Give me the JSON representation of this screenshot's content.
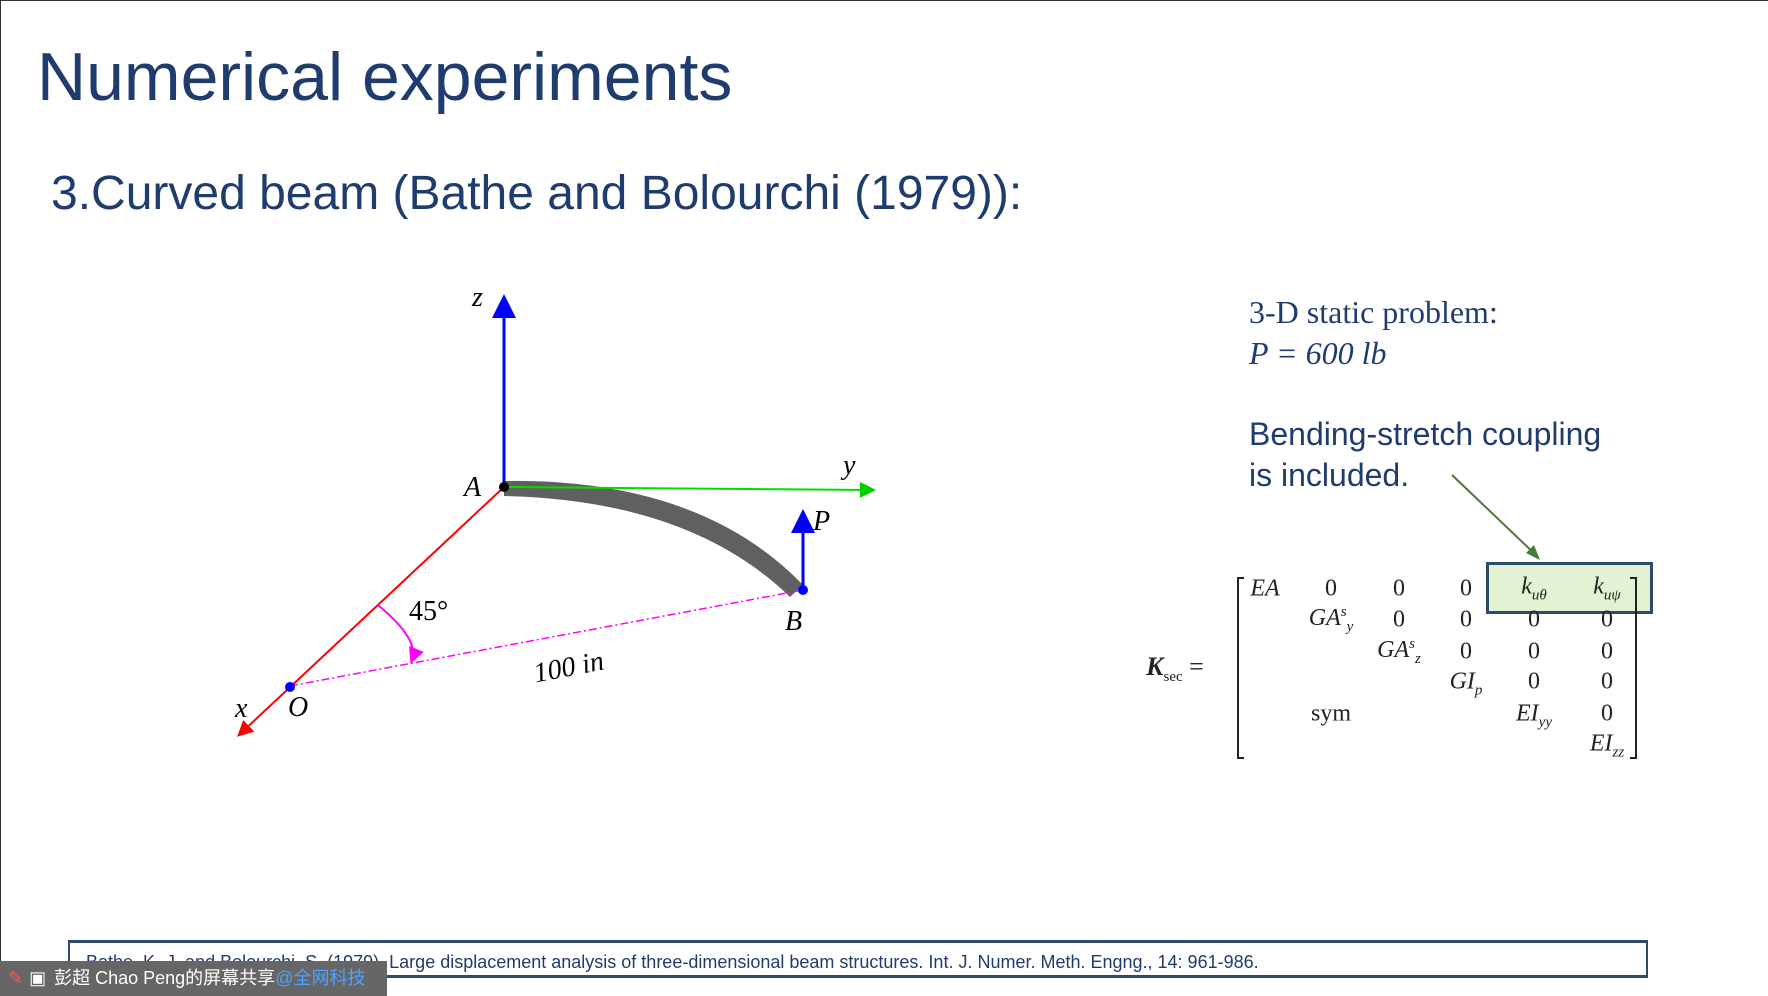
{
  "slide": {
    "title": "Numerical experiments",
    "subtitle": "3.Curved beam (Bathe and Bolourchi (1979)):",
    "diagram": {
      "labels": {
        "z": "z",
        "y": "y",
        "x": "x",
        "A": "A",
        "B": "B",
        "O": "O",
        "P": "P",
        "angle": "45°",
        "length": "100 in"
      },
      "colors": {
        "z_axis": "#0000ff",
        "y_axis": "#00dd00",
        "x_axis": "#ff0000",
        "beam": "#606060",
        "dashed": "#ff00ff"
      }
    },
    "problem": {
      "line1": "3-D static problem:",
      "line2": "P = 600 lb"
    },
    "coupling": {
      "line1": "Bending-stretch coupling",
      "line2": "is included."
    },
    "matrix": {
      "lhs": "K",
      "lhs_sub": "sec",
      "eq": "=",
      "highlight_color": "#e3f2d2"
    },
    "reference": "Bathe, K.-J. and Bolourchi, S. (1979), Large displacement analysis of three-dimensional beam structures. Int. J. Numer. Meth. Engng., 14: 961-986."
  },
  "share_bar": {
    "text": "彭超 Chao Peng的屏幕共享",
    "highlight": "@全网科技"
  }
}
